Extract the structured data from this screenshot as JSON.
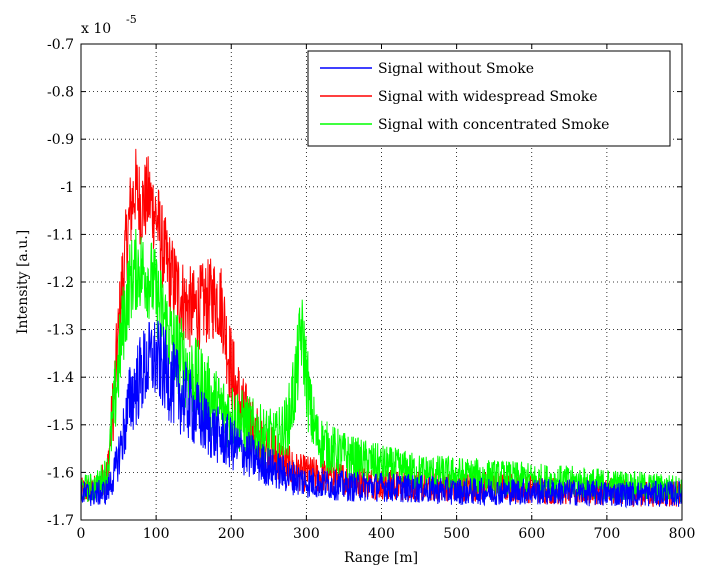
{
  "chart_data": {
    "type": "line",
    "title": "",
    "xlabel": "Range [m]",
    "ylabel": "Intensity [a.u.]",
    "y_exponent_label": "x 10",
    "y_exponent_power": "-5",
    "xlim": [
      0,
      800
    ],
    "ylim": [
      -1.7,
      -0.7
    ],
    "x_ticks": [
      0,
      100,
      200,
      300,
      400,
      500,
      600,
      700,
      800
    ],
    "y_ticks": [
      -1.7,
      -1.6,
      -1.5,
      -1.4,
      -1.3,
      -1.2,
      -1.1,
      -1.0,
      -0.9,
      -0.8,
      -0.7
    ],
    "x_tick_labels": [
      "0",
      "100",
      "200",
      "300",
      "400",
      "500",
      "600",
      "700",
      "800"
    ],
    "y_tick_labels": [
      "-1.7",
      "-1.6",
      "-1.5",
      "-1.4",
      "-1.3",
      "-1.2",
      "-1.1",
      "-1",
      "-0.9",
      "-0.8",
      "-0.7"
    ],
    "grid": true,
    "legend_position": "top-right",
    "series": [
      {
        "name": "Signal without Smoke",
        "color": "#0000ff",
        "x": [
          0,
          20,
          35,
          45,
          55,
          65,
          75,
          85,
          95,
          105,
          120,
          140,
          160,
          180,
          200,
          220,
          240,
          260,
          280,
          300,
          330,
          360,
          400,
          450,
          500,
          550,
          600,
          650,
          700,
          750,
          800
        ],
        "values": [
          -1.645,
          -1.645,
          -1.64,
          -1.6,
          -1.53,
          -1.45,
          -1.41,
          -1.38,
          -1.36,
          -1.37,
          -1.41,
          -1.45,
          -1.49,
          -1.52,
          -1.54,
          -1.56,
          -1.58,
          -1.595,
          -1.61,
          -1.62,
          -1.625,
          -1.63,
          -1.63,
          -1.635,
          -1.64,
          -1.64,
          -1.64,
          -1.642,
          -1.645,
          -1.645,
          -1.645
        ]
      },
      {
        "name": "Signal with widespread Smoke",
        "color": "#ff0000",
        "x": [
          0,
          20,
          35,
          45,
          55,
          65,
          72,
          80,
          90,
          100,
          110,
          120,
          130,
          140,
          150,
          160,
          170,
          180,
          188,
          195,
          205,
          215,
          230,
          250,
          270,
          290,
          310,
          330,
          360,
          400,
          450,
          500,
          550,
          600,
          650,
          700,
          750,
          800
        ],
        "values": [
          -1.64,
          -1.635,
          -1.6,
          -1.42,
          -1.2,
          -1.06,
          -1.0,
          -1.04,
          -1.02,
          -1.06,
          -1.14,
          -1.19,
          -1.22,
          -1.25,
          -1.26,
          -1.25,
          -1.24,
          -1.23,
          -1.25,
          -1.34,
          -1.42,
          -1.47,
          -1.51,
          -1.55,
          -1.58,
          -1.6,
          -1.605,
          -1.61,
          -1.615,
          -1.625,
          -1.63,
          -1.63,
          -1.63,
          -1.635,
          -1.64,
          -1.64,
          -1.645,
          -1.645
        ]
      },
      {
        "name": "Signal with concentrated Smoke",
        "color": "#00ff00",
        "x": [
          0,
          20,
          35,
          45,
          55,
          65,
          75,
          85,
          95,
          105,
          120,
          140,
          160,
          180,
          200,
          220,
          240,
          260,
          275,
          283,
          288,
          293,
          298,
          305,
          315,
          330,
          360,
          400,
          450,
          500,
          550,
          600,
          650,
          700,
          750,
          800
        ],
        "values": [
          -1.635,
          -1.63,
          -1.6,
          -1.45,
          -1.3,
          -1.2,
          -1.17,
          -1.18,
          -1.2,
          -1.25,
          -1.32,
          -1.38,
          -1.42,
          -1.46,
          -1.48,
          -1.5,
          -1.52,
          -1.53,
          -1.5,
          -1.43,
          -1.38,
          -1.3,
          -1.36,
          -1.47,
          -1.53,
          -1.55,
          -1.57,
          -1.585,
          -1.6,
          -1.605,
          -1.61,
          -1.615,
          -1.62,
          -1.625,
          -1.63,
          -1.635
        ]
      }
    ]
  }
}
